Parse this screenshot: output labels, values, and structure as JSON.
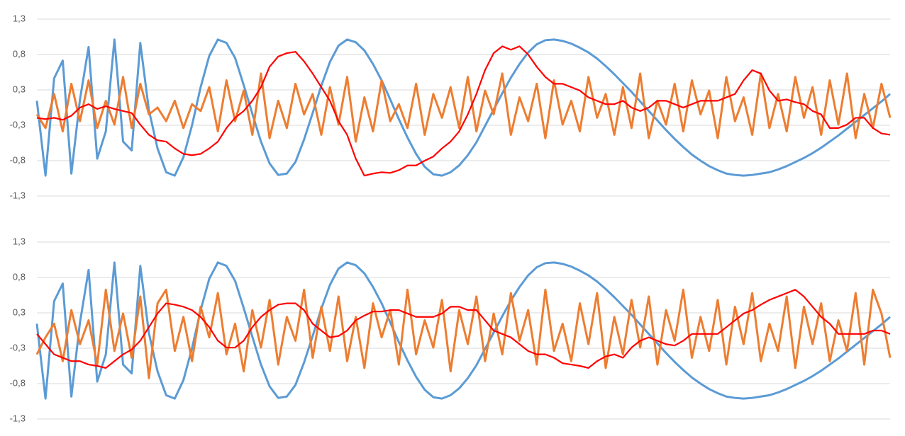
{
  "chart_data": [
    {
      "type": "line",
      "ylim": [
        -1.3,
        1.3
      ],
      "grid": true,
      "yticks": [
        {
          "value": 1.3,
          "label": "1,3"
        },
        {
          "value": 0.78,
          "label": "0,8"
        },
        {
          "value": 0.26,
          "label": "0,3"
        },
        {
          "value": -0.26,
          "label": "-0,3"
        },
        {
          "value": -0.78,
          "label": "-0,8"
        },
        {
          "value": -1.3,
          "label": "-1,3"
        }
      ],
      "series": [
        {
          "color": "#5b9bd5",
          "values": [
            0.1,
            -1,
            0.43,
            0.69,
            -0.97,
            0.12,
            0.89,
            -0.75,
            -0.35,
            1,
            -0.5,
            -0.63,
            0.95,
            -0.04,
            -0.6,
            -0.95,
            -1,
            -0.73,
            -0.26,
            0.3,
            0.76,
            1,
            0.95,
            0.73,
            0.33,
            -0.09,
            -0.5,
            -0.82,
            -0.99,
            -0.97,
            -0.8,
            -0.47,
            -0.08,
            0.32,
            0.67,
            0.91,
            1,
            0.96,
            0.84,
            0.64,
            0.4,
            0.12,
            -0.17,
            -0.44,
            -0.68,
            -0.87,
            -0.98,
            -1,
            -0.95,
            -0.85,
            -0.7,
            -0.51,
            -0.27,
            -0.03,
            0.21,
            0.44,
            0.64,
            0.81,
            0.93,
            0.99,
            1,
            0.98,
            0.94,
            0.88,
            0.81,
            0.72,
            0.61,
            0.49,
            0.36,
            0.23,
            0.09,
            -0.05,
            -0.19,
            -0.33,
            -0.46,
            -0.58,
            -0.69,
            -0.78,
            -0.86,
            -0.92,
            -0.97,
            -0.99,
            -1,
            -0.99,
            -0.97,
            -0.95,
            -0.91,
            -0.86,
            -0.8,
            -0.74,
            -0.67,
            -0.59,
            -0.5,
            -0.41,
            -0.31,
            -0.21,
            -0.11,
            -0.01,
            0.09,
            0.2
          ]
        },
        {
          "color": "#ed7d31",
          "values": [
            -0.1,
            -0.3,
            0.2,
            -0.35,
            0.35,
            -0.2,
            0.4,
            -0.3,
            0.1,
            -0.25,
            0.45,
            -0.3,
            0.35,
            -0.1,
            0.0,
            -0.2,
            0.1,
            -0.3,
            0.05,
            -0.05,
            0.3,
            -0.35,
            0.4,
            -0.2,
            0.25,
            -0.4,
            0.5,
            -0.45,
            0.1,
            -0.3,
            0.35,
            -0.1,
            0.2,
            -0.4,
            0.3,
            -0.25,
            0.45,
            -0.5,
            0.15,
            -0.35,
            0.4,
            -0.2,
            0.05,
            -0.3,
            0.35,
            -0.4,
            0.2,
            -0.15,
            0.3,
            -0.3,
            0.45,
            -0.35,
            0.25,
            -0.1,
            0.5,
            -0.4,
            0.15,
            -0.2,
            0.35,
            -0.45,
            0.4,
            -0.25,
            0.1,
            -0.35,
            0.45,
            -0.15,
            0.2,
            -0.4,
            0.3,
            -0.3,
            0.5,
            -0.45,
            0.1,
            -0.25,
            0.35,
            -0.35,
            0.4,
            -0.1,
            0.25,
            -0.45,
            0.45,
            -0.2,
            0.15,
            -0.4,
            0.5,
            -0.3,
            0.2,
            -0.35,
            0.45,
            -0.15,
            0.3,
            -0.4,
            0.4,
            -0.25,
            0.5,
            -0.45,
            0.2,
            -0.3,
            0.35,
            -0.15
          ]
        },
        {
          "color": "#ff0000",
          "values": [
            -0.15,
            -0.17,
            -0.15,
            -0.18,
            -0.12,
            0.0,
            0.05,
            -0.02,
            0.02,
            -0.02,
            -0.05,
            -0.08,
            -0.25,
            -0.4,
            -0.48,
            -0.5,
            -0.6,
            -0.68,
            -0.7,
            -0.68,
            -0.6,
            -0.5,
            -0.3,
            -0.15,
            -0.05,
            0.1,
            0.3,
            0.6,
            0.75,
            0.8,
            0.82,
            0.68,
            0.5,
            0.3,
            0.1,
            -0.2,
            -0.4,
            -0.75,
            -1.0,
            -0.97,
            -0.95,
            -0.96,
            -0.92,
            -0.85,
            -0.85,
            -0.78,
            -0.72,
            -0.6,
            -0.5,
            -0.35,
            -0.1,
            0.2,
            0.55,
            0.8,
            0.9,
            0.85,
            0.9,
            0.78,
            0.6,
            0.45,
            0.35,
            0.35,
            0.3,
            0.25,
            0.15,
            0.1,
            0.05,
            0.05,
            0.1,
            0.0,
            -0.05,
            0.0,
            0.1,
            0.1,
            0.05,
            0.0,
            0.05,
            0.1,
            0.1,
            0.1,
            0.15,
            0.2,
            0.4,
            0.55,
            0.5,
            0.25,
            0.1,
            0.12,
            0.08,
            0.05,
            -0.05,
            -0.1,
            -0.3,
            -0.3,
            -0.25,
            -0.15,
            -0.15,
            -0.3,
            -0.38,
            -0.4
          ]
        }
      ]
    },
    {
      "type": "line",
      "ylim": [
        -1.3,
        1.3
      ],
      "grid": true,
      "yticks": [
        {
          "value": 1.3,
          "label": "1,3"
        },
        {
          "value": 0.78,
          "label": "0,8"
        },
        {
          "value": 0.26,
          "label": "0,3"
        },
        {
          "value": -0.26,
          "label": "-0,3"
        },
        {
          "value": -0.78,
          "label": "-0,8"
        },
        {
          "value": -1.3,
          "label": "-1,3"
        }
      ],
      "series": [
        {
          "color": "#5b9bd5",
          "values": [
            0.1,
            -1,
            0.43,
            0.69,
            -0.97,
            0.12,
            0.89,
            -0.75,
            -0.35,
            1,
            -0.5,
            -0.63,
            0.95,
            -0.04,
            -0.6,
            -0.95,
            -1,
            -0.73,
            -0.26,
            0.3,
            0.76,
            1,
            0.95,
            0.73,
            0.33,
            -0.09,
            -0.5,
            -0.82,
            -0.99,
            -0.97,
            -0.8,
            -0.47,
            -0.08,
            0.32,
            0.67,
            0.91,
            1,
            0.96,
            0.84,
            0.64,
            0.4,
            0.12,
            -0.17,
            -0.44,
            -0.68,
            -0.87,
            -0.98,
            -1,
            -0.95,
            -0.85,
            -0.7,
            -0.51,
            -0.27,
            -0.03,
            0.21,
            0.44,
            0.64,
            0.81,
            0.93,
            0.99,
            1,
            0.98,
            0.94,
            0.88,
            0.81,
            0.72,
            0.61,
            0.49,
            0.36,
            0.23,
            0.09,
            -0.05,
            -0.19,
            -0.33,
            -0.46,
            -0.58,
            -0.69,
            -0.78,
            -0.86,
            -0.92,
            -0.97,
            -0.99,
            -1,
            -0.99,
            -0.97,
            -0.95,
            -0.91,
            -0.86,
            -0.8,
            -0.74,
            -0.67,
            -0.59,
            -0.5,
            -0.41,
            -0.31,
            -0.21,
            -0.11,
            -0.01,
            0.09,
            0.2
          ]
        },
        {
          "color": "#ed7d31",
          "values": [
            -0.35,
            -0.1,
            0.1,
            -0.45,
            0.3,
            -0.2,
            0.15,
            -0.5,
            0.6,
            -0.3,
            0.25,
            -0.4,
            0.5,
            -0.7,
            0.4,
            0.6,
            -0.3,
            0.2,
            -0.45,
            0.35,
            -0.1,
            0.55,
            -0.35,
            0.1,
            -0.6,
            0.3,
            -0.25,
            0.45,
            -0.5,
            0.2,
            -0.15,
            0.6,
            -0.4,
            0.35,
            -0.3,
            0.5,
            -0.45,
            0.2,
            -0.55,
            0.4,
            -0.1,
            0.3,
            -0.5,
            0.6,
            -0.35,
            0.15,
            -0.25,
            0.45,
            -0.6,
            0.3,
            -0.2,
            0.5,
            -0.45,
            0.25,
            -0.35,
            0.55,
            -0.15,
            0.3,
            -0.5,
            0.6,
            -0.3,
            0.1,
            -0.45,
            0.4,
            -0.2,
            0.55,
            -0.55,
            0.2,
            -0.35,
            0.45,
            -0.25,
            0.5,
            -0.5,
            0.3,
            -0.15,
            0.6,
            -0.4,
            0.2,
            -0.3,
            0.45,
            -0.5,
            0.35,
            -0.2,
            0.55,
            -0.45,
            0.1,
            -0.3,
            0.5,
            -0.55,
            0.35,
            -0.2,
            0.4,
            -0.45,
            0.15,
            -0.3,
            0.55,
            -0.5,
            0.6,
            0.25,
            -0.4
          ]
        },
        {
          "color": "#ff0000",
          "values": [
            -0.05,
            -0.2,
            -0.35,
            -0.4,
            -0.45,
            -0.45,
            -0.5,
            -0.52,
            -0.55,
            -0.45,
            -0.35,
            -0.28,
            -0.15,
            0.05,
            0.25,
            0.4,
            0.38,
            0.35,
            0.3,
            0.2,
            0.05,
            -0.15,
            -0.25,
            -0.25,
            -0.15,
            0.05,
            0.2,
            0.3,
            0.38,
            0.4,
            0.4,
            0.3,
            0.1,
            0.0,
            -0.1,
            -0.08,
            0.0,
            0.15,
            0.22,
            0.28,
            0.28,
            0.3,
            0.3,
            0.25,
            0.2,
            0.2,
            0.2,
            0.25,
            0.35,
            0.35,
            0.3,
            0.3,
            0.15,
            0.0,
            -0.05,
            -0.1,
            -0.2,
            -0.3,
            -0.35,
            -0.35,
            -0.4,
            -0.48,
            -0.5,
            -0.52,
            -0.55,
            -0.45,
            -0.38,
            -0.35,
            -0.4,
            -0.25,
            -0.15,
            -0.1,
            -0.15,
            -0.2,
            -0.22,
            -0.15,
            -0.05,
            -0.05,
            -0.05,
            -0.05,
            0.05,
            0.15,
            0.25,
            0.3,
            0.38,
            0.45,
            0.5,
            0.55,
            0.6,
            0.5,
            0.35,
            0.2,
            0.1,
            -0.05,
            -0.05,
            -0.05,
            -0.05,
            0.0,
            0.0,
            -0.05
          ]
        }
      ]
    }
  ]
}
